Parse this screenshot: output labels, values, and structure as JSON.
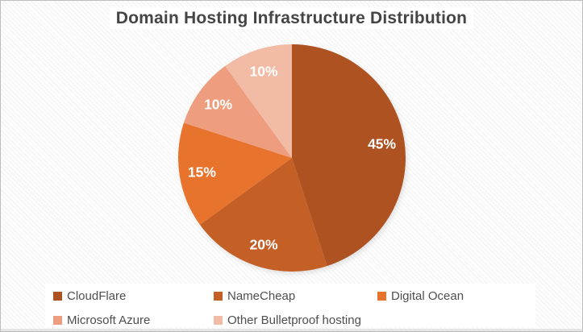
{
  "chart_data": {
    "type": "pie",
    "title": "Domain Hosting Infrastructure Distribution",
    "series": [
      {
        "name": "CloudFlare",
        "value": 45,
        "label": "45%",
        "color": "#AD5220"
      },
      {
        "name": "NameCheap",
        "value": 20,
        "label": "20%",
        "color": "#C45F26"
      },
      {
        "name": "Digital Ocean",
        "value": 15,
        "label": "15%",
        "color": "#E8732C"
      },
      {
        "name": "Microsoft Azure",
        "value": 10,
        "label": "10%",
        "color": "#EE9E7E"
      },
      {
        "name": "Other Bulletproof hosting",
        "value": 10,
        "label": "10%",
        "color": "#F2BBA6"
      }
    ],
    "start_angle_deg": 0,
    "direction": "clockwise",
    "data_labels": "percent",
    "legend_position": "bottom"
  },
  "colors": {
    "title_text": "#454545",
    "legend_text": "#4e4e4e",
    "slice_label": "#FFFFFF",
    "background": "#FDFDFD",
    "legend_background": "#FFFFFF"
  }
}
